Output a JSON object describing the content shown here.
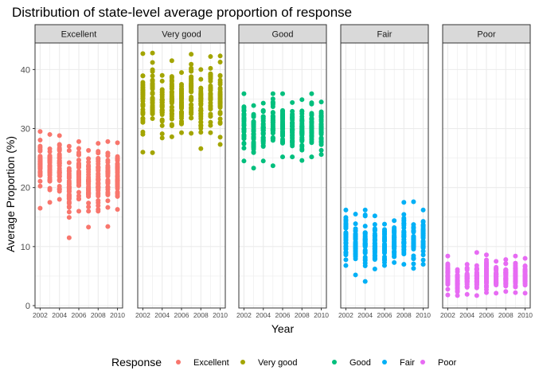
{
  "chart_data": {
    "type": "scatter",
    "title": "Distribution of state-level average proportion of response",
    "xlabel": "Year",
    "ylabel": "Average Proportion (%)",
    "x_ticks": [
      "2002",
      "2004",
      "2006",
      "2008",
      "2010"
    ],
    "y_ticks": [
      "0",
      "10",
      "20",
      "30",
      "40"
    ],
    "ylim": [
      0,
      44.5
    ],
    "xlim": [
      2001.8,
      2010.2
    ],
    "grid": true,
    "legend": {
      "title": "Response",
      "position": "bottom"
    },
    "facets": [
      {
        "name": "Excellent",
        "color": "#F8766D",
        "ranges": [
          {
            "x": 2002,
            "min": 16.5,
            "max": 29.5,
            "out": [
              16.5
            ]
          },
          {
            "x": 2003,
            "min": 17.5,
            "max": 29.0,
            "out": []
          },
          {
            "x": 2004,
            "min": 18.0,
            "max": 28.8,
            "out": []
          },
          {
            "x": 2005,
            "min": 11.5,
            "max": 27.0,
            "out": [
              11.5
            ]
          },
          {
            "x": 2006,
            "min": 16.0,
            "max": 27.8,
            "out": []
          },
          {
            "x": 2007,
            "min": 13.3,
            "max": 26.3,
            "out": [
              13.3
            ]
          },
          {
            "x": 2008,
            "min": 16.0,
            "max": 27.5,
            "out": []
          },
          {
            "x": 2009,
            "min": 13.4,
            "max": 27.8,
            "out": [
              13.4
            ]
          },
          {
            "x": 2010,
            "min": 16.3,
            "max": 27.6,
            "out": []
          }
        ]
      },
      {
        "name": "Very good",
        "color": "#A3A500",
        "ranges": [
          {
            "x": 2002,
            "min": 26.0,
            "max": 42.7,
            "out": [
              26.0
            ]
          },
          {
            "x": 2003,
            "min": 25.9,
            "max": 42.8,
            "out": [
              25.9
            ]
          },
          {
            "x": 2004,
            "min": 28.4,
            "max": 39.0,
            "out": []
          },
          {
            "x": 2005,
            "min": 28.6,
            "max": 41.5,
            "out": []
          },
          {
            "x": 2006,
            "min": 29.3,
            "max": 39.5,
            "out": []
          },
          {
            "x": 2007,
            "min": 29.2,
            "max": 42.6,
            "out": []
          },
          {
            "x": 2008,
            "min": 26.6,
            "max": 40.0,
            "out": [
              26.6
            ]
          },
          {
            "x": 2009,
            "min": 29.3,
            "max": 42.2,
            "out": []
          },
          {
            "x": 2010,
            "min": 27.3,
            "max": 42.3,
            "out": []
          }
        ]
      },
      {
        "name": "Good",
        "color": "#00BF7D",
        "ranges": [
          {
            "x": 2002,
            "min": 24.5,
            "max": 35.9,
            "out": []
          },
          {
            "x": 2003,
            "min": 23.3,
            "max": 33.9,
            "out": []
          },
          {
            "x": 2004,
            "min": 24.5,
            "max": 34.3,
            "out": []
          },
          {
            "x": 2005,
            "min": 23.7,
            "max": 35.9,
            "out": [
              23.7
            ]
          },
          {
            "x": 2006,
            "min": 25.2,
            "max": 35.9,
            "out": []
          },
          {
            "x": 2007,
            "min": 25.2,
            "max": 34.4,
            "out": []
          },
          {
            "x": 2008,
            "min": 24.6,
            "max": 34.9,
            "out": []
          },
          {
            "x": 2009,
            "min": 25.2,
            "max": 35.9,
            "out": []
          },
          {
            "x": 2010,
            "min": 25.6,
            "max": 34.5,
            "out": []
          }
        ]
      },
      {
        "name": "Fair",
        "color": "#00B0F6",
        "ranges": [
          {
            "x": 2002,
            "min": 6.8,
            "max": 16.2,
            "out": []
          },
          {
            "x": 2003,
            "min": 5.2,
            "max": 15.5,
            "out": []
          },
          {
            "x": 2004,
            "min": 4.1,
            "max": 16.2,
            "out": [
              4.1
            ]
          },
          {
            "x": 2005,
            "min": 6.2,
            "max": 15.2,
            "out": []
          },
          {
            "x": 2006,
            "min": 6.8,
            "max": 13.8,
            "out": []
          },
          {
            "x": 2007,
            "min": 7.3,
            "max": 14.4,
            "out": []
          },
          {
            "x": 2008,
            "min": 7.0,
            "max": 17.5,
            "out": [
              17.5
            ]
          },
          {
            "x": 2009,
            "min": 6.3,
            "max": 17.6,
            "out": [
              17.6
            ]
          },
          {
            "x": 2010,
            "min": 7.0,
            "max": 16.2,
            "out": []
          }
        ]
      },
      {
        "name": "Poor",
        "color": "#E76BF3",
        "ranges": [
          {
            "x": 2002,
            "min": 1.8,
            "max": 8.4,
            "out": []
          },
          {
            "x": 2003,
            "min": 1.7,
            "max": 6.1,
            "out": []
          },
          {
            "x": 2004,
            "min": 1.9,
            "max": 7.0,
            "out": []
          },
          {
            "x": 2005,
            "min": 1.7,
            "max": 9.0,
            "out": [
              9.0
            ]
          },
          {
            "x": 2006,
            "min": 2.2,
            "max": 8.6,
            "out": []
          },
          {
            "x": 2007,
            "min": 2.1,
            "max": 7.5,
            "out": []
          },
          {
            "x": 2008,
            "min": 2.4,
            "max": 7.8,
            "out": []
          },
          {
            "x": 2009,
            "min": 2.2,
            "max": 8.4,
            "out": []
          },
          {
            "x": 2010,
            "min": 2.1,
            "max": 8.0,
            "out": []
          }
        ]
      }
    ]
  }
}
